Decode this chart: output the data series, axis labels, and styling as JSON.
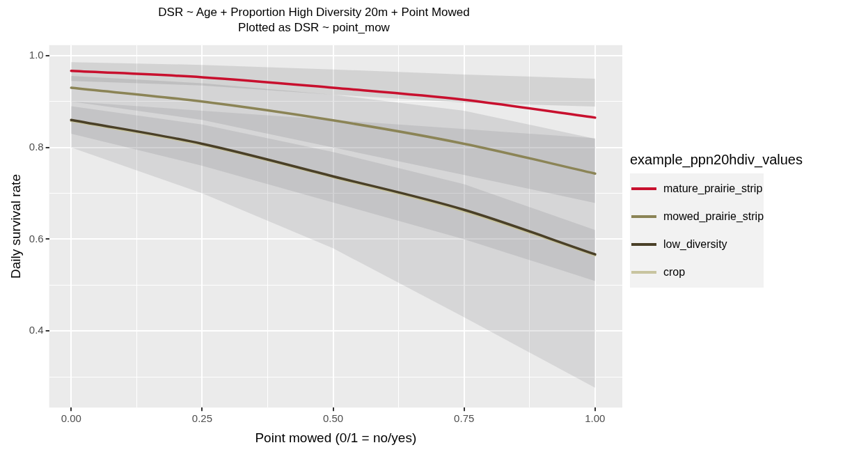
{
  "chart_data": {
    "type": "line",
    "title": "DSR ~ Age + Proportion High Diversity 20m + Point Mowed",
    "subtitle": "Plotted as DSR ~ point_mow",
    "xlabel": "Point mowed (0/1 = no/yes)",
    "ylabel": "Daily survival rate",
    "legend_title": "example_ppn20hdiv_values",
    "x": [
      0,
      0.25,
      0.5,
      0.75,
      1
    ],
    "series": [
      {
        "name": "mature_prairie_strip",
        "color": "#c8102e",
        "values": [
          0.967,
          0.953,
          0.93,
          0.904,
          0.865
        ],
        "upper": [
          0.986,
          0.98,
          0.97,
          0.959,
          0.95
        ],
        "lower": [
          0.945,
          0.935,
          0.915,
          0.898,
          0.889
        ]
      },
      {
        "name": "mowed_prairie_strip",
        "color": "#8b8456",
        "values": [
          0.93,
          0.9,
          0.859,
          0.808,
          0.743
        ],
        "upper": [
          0.956,
          0.94,
          0.915,
          0.88,
          0.819
        ],
        "lower": [
          0.9,
          0.86,
          0.8,
          0.74,
          0.679
        ]
      },
      {
        "name": "low_diversity",
        "color": "#4a4028",
        "values": [
          0.86,
          0.808,
          0.737,
          0.664,
          0.567
        ],
        "upper": [
          0.89,
          0.85,
          0.79,
          0.72,
          0.62
        ],
        "lower": [
          0.83,
          0.76,
          0.68,
          0.6,
          0.509
        ]
      },
      {
        "name": "crop",
        "color": "#c8c49f",
        "values": [
          0.858,
          0.806,
          0.735,
          0.661,
          0.565
        ],
        "upper": [
          0.9,
          0.88,
          0.86,
          0.84,
          0.82
        ],
        "lower": [
          0.8,
          0.7,
          0.58,
          0.43,
          0.276
        ]
      }
    ],
    "xlim": [
      -0.042,
      1.052
    ],
    "ylim": [
      0.233,
      1.023
    ],
    "xticks": [
      {
        "value": 0,
        "label": "0.00"
      },
      {
        "value": 0.125,
        "label": null
      },
      {
        "value": 0.25,
        "label": "0.25"
      },
      {
        "value": 0.375,
        "label": null
      },
      {
        "value": 0.5,
        "label": "0.50"
      },
      {
        "value": 0.625,
        "label": null
      },
      {
        "value": 0.75,
        "label": "0.75"
      },
      {
        "value": 0.875,
        "label": null
      },
      {
        "value": 1,
        "label": "1.00"
      }
    ],
    "yticks": [
      {
        "value": 0.3,
        "label": null
      },
      {
        "value": 0.4,
        "label": "0.4"
      },
      {
        "value": 0.5,
        "label": null
      },
      {
        "value": 0.6,
        "label": "0.6"
      },
      {
        "value": 0.7,
        "label": null
      },
      {
        "value": 0.8,
        "label": "0.8"
      },
      {
        "value": 0.9,
        "label": null
      },
      {
        "value": 1,
        "label": "1.0"
      }
    ],
    "grid": true,
    "legend": "right",
    "marker": "none",
    "line_style": "solid"
  }
}
